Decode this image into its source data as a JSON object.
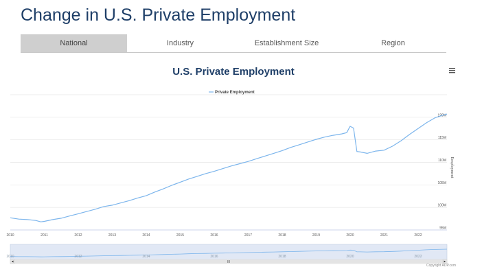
{
  "header": {
    "title": "Change in U.S. Private Employment"
  },
  "tabs": [
    {
      "label": "National",
      "active": true
    },
    {
      "label": "Industry",
      "active": false
    },
    {
      "label": "Establishment Size",
      "active": false
    },
    {
      "label": "Region",
      "active": false
    }
  ],
  "menu": {
    "icon": "hamburger-menu-icon"
  },
  "navigator": {
    "grip_label": "III"
  },
  "credit": "Copyright ADP.com",
  "colors": {
    "line": "#7cb5ec",
    "title": "#1f3f68",
    "grid": "#e6e6e6",
    "navigator_fill": "#cdd9ee"
  },
  "chart_data": {
    "type": "line",
    "title": "U.S. Private Employment",
    "legend": [
      "Private Employment"
    ],
    "legend_position": "top-center",
    "xlabel": "",
    "ylabel": "Employment",
    "y_axis_side": "right",
    "x_ticks": [
      "2010",
      "2011",
      "2012",
      "2013",
      "2014",
      "2015",
      "2016",
      "2017",
      "2018",
      "2019",
      "2020",
      "2021",
      "2022"
    ],
    "y_ticks": [
      "95M",
      "100M",
      "105M",
      "110M",
      "115M",
      "120M"
    ],
    "y_tick_values": [
      95,
      100,
      105,
      110,
      115,
      120
    ],
    "ylim": [
      95,
      125
    ],
    "xlim": [
      2010.0,
      2022.85
    ],
    "navigator_ticks": [
      "2010",
      "2012",
      "2014",
      "2016",
      "2018",
      "2020",
      "2022"
    ],
    "navigator_tick_values": [
      2010,
      2012,
      2014,
      2016,
      2018,
      2020,
      2022
    ],
    "series": [
      {
        "name": "Private Employment",
        "x": [
          2010.0,
          2010.25,
          2010.5,
          2010.75,
          2010.9,
          2011.0,
          2011.25,
          2011.5,
          2011.75,
          2012.0,
          2012.25,
          2012.5,
          2012.75,
          2013.0,
          2013.25,
          2013.5,
          2013.75,
          2014.0,
          2014.25,
          2014.5,
          2014.75,
          2015.0,
          2015.25,
          2015.5,
          2015.75,
          2016.0,
          2016.25,
          2016.5,
          2016.75,
          2017.0,
          2017.25,
          2017.5,
          2017.75,
          2018.0,
          2018.25,
          2018.5,
          2018.75,
          2019.0,
          2019.25,
          2019.5,
          2019.75,
          2019.9,
          2020.0,
          2020.1,
          2020.2,
          2020.3,
          2020.5,
          2020.75,
          2021.0,
          2021.25,
          2021.5,
          2021.75,
          2022.0,
          2022.25,
          2022.5,
          2022.75,
          2022.85
        ],
        "values": [
          97.7,
          97.4,
          97.3,
          97.1,
          96.8,
          96.9,
          97.3,
          97.6,
          98.1,
          98.6,
          99.1,
          99.6,
          100.2,
          100.5,
          101.0,
          101.5,
          102.1,
          102.6,
          103.4,
          104.1,
          104.9,
          105.6,
          106.3,
          106.9,
          107.5,
          108.0,
          108.6,
          109.2,
          109.7,
          110.2,
          110.8,
          111.4,
          112.0,
          112.6,
          113.3,
          113.9,
          114.5,
          115.1,
          115.6,
          116.0,
          116.3,
          116.6,
          118.0,
          117.6,
          112.4,
          112.3,
          112.0,
          112.5,
          112.7,
          113.6,
          114.8,
          116.2,
          117.5,
          118.8,
          119.9,
          120.5,
          120.7
        ]
      }
    ]
  }
}
